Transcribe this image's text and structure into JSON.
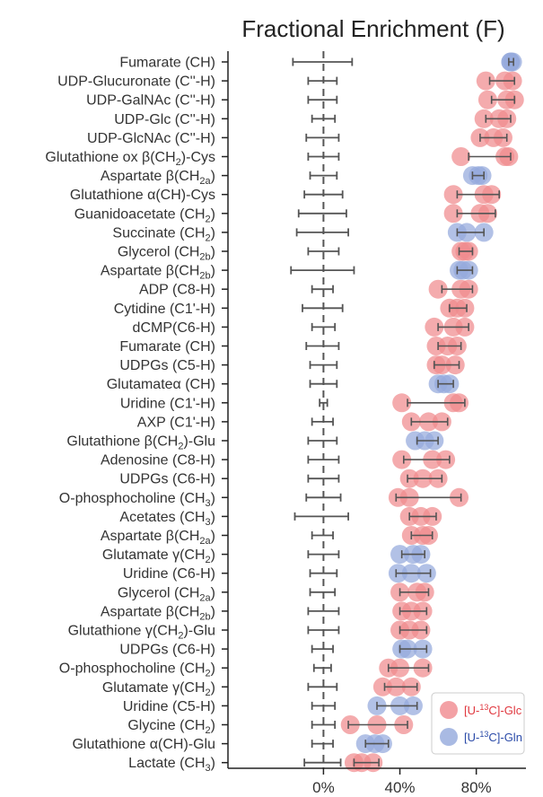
{
  "chart_data": {
    "type": "scatter",
    "title": "Fractional Enrichment (F)",
    "xlim": [
      -0.5,
      1.06
    ],
    "x_ticks": [
      {
        "value": 0.0,
        "label": "0%"
      },
      {
        "value": 0.4,
        "label": "40%"
      },
      {
        "value": 0.8,
        "label": "80%"
      }
    ],
    "zero_line": "dashed",
    "legend": {
      "placement": "bottom-right",
      "entries": [
        {
          "key": "glc",
          "label": "[U-13C]-Glc",
          "prefix": "[U-",
          "sup": "13",
          "suffix": "C]-Glc",
          "color": "#e0373e"
        },
        {
          "key": "gln",
          "label": "[U-13C]-Gln",
          "prefix": "[U-",
          "sup": "13",
          "suffix": "C]-Gln",
          "color": "#2a4aa8"
        }
      ]
    },
    "colors": {
      "glc": "#f08a8e",
      "gln": "#94a9dc",
      "error": "#555555",
      "axis": "#222222"
    },
    "rows": [
      {
        "label": "Fumarate (CH)",
        "null": [
          -0.16,
          0.15
        ],
        "gln": [
          0.98,
          0.98,
          0.99
        ],
        "gln_err": [
          0.97,
          0.995
        ]
      },
      {
        "label": "UDP-Glucuronate (C''-H)",
        "null": [
          -0.08,
          0.07
        ],
        "glc": [
          0.85,
          0.95,
          0.99
        ],
        "glc_err": [
          0.87,
          1.0
        ]
      },
      {
        "label": "UDP-GalNAc (C''-H)",
        "null": [
          -0.08,
          0.07
        ],
        "glc": [
          0.86,
          0.96,
          1.0
        ],
        "glc_err": [
          0.88,
          1.0
        ]
      },
      {
        "label": "UDP-Glc (C''-H)",
        "null": [
          -0.06,
          0.06
        ],
        "glc": [
          0.84,
          0.92,
          0.96
        ],
        "glc_err": [
          0.85,
          0.98
        ]
      },
      {
        "label": "UDP-GlcNAc (C''-H)",
        "null": [
          -0.09,
          0.08
        ],
        "glc": [
          0.82,
          0.89,
          0.94
        ],
        "glc_err": [
          0.82,
          0.96
        ]
      },
      {
        "label": "Glutathione ox β(CH2)-Cys",
        "null": [
          -0.08,
          0.08
        ],
        "glc": [
          0.72,
          0.95,
          0.97
        ],
        "glc_err": [
          0.76,
          0.98
        ]
      },
      {
        "label": "Aspartate β(CH2a)",
        "null": [
          -0.07,
          0.07
        ],
        "gln": [
          0.78,
          0.81,
          0.83
        ],
        "gln_err": [
          0.78,
          0.84
        ]
      },
      {
        "label": "Glutathione α(CH)-Cys",
        "null": [
          -0.1,
          0.1
        ],
        "glc": [
          0.68,
          0.84,
          0.88
        ],
        "glc_err": [
          0.7,
          0.92
        ]
      },
      {
        "label": "Guanidoacetate (CH2)",
        "null": [
          -0.13,
          0.12
        ],
        "glc": [
          0.68,
          0.82,
          0.86
        ],
        "glc_err": [
          0.7,
          0.9
        ]
      },
      {
        "label": "Succinate (CH2)",
        "null": [
          -0.14,
          0.13
        ],
        "gln": [
          0.7,
          0.75,
          0.84
        ],
        "gln_err": [
          0.7,
          0.84
        ]
      },
      {
        "label": "Glycerol (CH2b)",
        "null": [
          -0.08,
          0.08
        ],
        "glc": [
          0.72,
          0.74,
          0.76
        ],
        "glc_err": [
          0.71,
          0.78
        ]
      },
      {
        "label": "Aspartate β(CH2b)",
        "null": [
          -0.17,
          0.16
        ],
        "gln": [
          0.71,
          0.73,
          0.76
        ],
        "gln_err": [
          0.7,
          0.78
        ]
      },
      {
        "label": "ADP (C8-H)",
        "null": [
          -0.06,
          0.05
        ],
        "glc": [
          0.6,
          0.72,
          0.76
        ],
        "glc_err": [
          0.62,
          0.78
        ]
      },
      {
        "label": "Cytidine (C1'-H)",
        "null": [
          -0.11,
          0.1
        ],
        "glc": [
          0.66,
          0.7,
          0.74
        ],
        "glc_err": [
          0.66,
          0.75
        ]
      },
      {
        "label": "dCMP(C6-H)",
        "null": [
          -0.06,
          0.06
        ],
        "glc": [
          0.58,
          0.68,
          0.74
        ],
        "glc_err": [
          0.6,
          0.76
        ]
      },
      {
        "label": "Fumarate (CH)",
        "null": [
          -0.09,
          0.08
        ],
        "glc": [
          0.59,
          0.65,
          0.7
        ],
        "glc_err": [
          0.6,
          0.72
        ]
      },
      {
        "label": "UDPGs (C5-H)",
        "null": [
          -0.07,
          0.07
        ],
        "glc": [
          0.59,
          0.62,
          0.69
        ],
        "glc_err": [
          0.58,
          0.71
        ]
      },
      {
        "label": "Glutamateα (CH)",
        "null": [
          -0.07,
          0.07
        ],
        "gln": [
          0.6,
          0.63,
          0.66
        ],
        "gln_err": [
          0.6,
          0.68
        ]
      },
      {
        "label": "Uridine (C1'-H)",
        "null": [
          -0.02,
          0.02
        ],
        "glc": [
          0.41,
          0.68,
          0.71
        ],
        "glc_err": [
          0.44,
          0.74
        ]
      },
      {
        "label": "AXP (C1'-H)",
        "null": [
          -0.06,
          0.05
        ],
        "glc": [
          0.46,
          0.55,
          0.62
        ],
        "glc_err": [
          0.46,
          0.65
        ]
      },
      {
        "label": "Glutathione β(CH2)-Glu",
        "null": [
          -0.08,
          0.07
        ],
        "gln": [
          0.48,
          0.53,
          0.58
        ],
        "gln_err": [
          0.49,
          0.6
        ]
      },
      {
        "label": "Adenosine (C8-H)",
        "null": [
          -0.08,
          0.08
        ],
        "glc": [
          0.41,
          0.57,
          0.64
        ],
        "glc_err": [
          0.42,
          0.66
        ]
      },
      {
        "label": "UDPGs (C6-H)",
        "null": [
          -0.08,
          0.08
        ],
        "glc": [
          0.45,
          0.52,
          0.6
        ],
        "glc_err": [
          0.44,
          0.62
        ]
      },
      {
        "label": "O-phosphocholine (CH3)",
        "null": [
          -0.09,
          0.09
        ],
        "glc": [
          0.39,
          0.45,
          0.71
        ],
        "glc_err": [
          0.38,
          0.72
        ]
      },
      {
        "label": "Acetates (CH3)",
        "null": [
          -0.15,
          0.13
        ],
        "glc": [
          0.45,
          0.51,
          0.57
        ],
        "glc_err": [
          0.45,
          0.59
        ]
      },
      {
        "label": "Aspartate β(CH2a)",
        "null": [
          -0.06,
          0.05
        ],
        "glc": [
          0.46,
          0.52,
          0.55
        ],
        "glc_err": [
          0.46,
          0.57
        ]
      },
      {
        "label": "Glutamate γ(CH2)",
        "null": [
          -0.08,
          0.08
        ],
        "gln": [
          0.4,
          0.47,
          0.51
        ],
        "gln_err": [
          0.41,
          0.53
        ]
      },
      {
        "label": "Uridine (C6-H)",
        "null": [
          -0.07,
          0.07
        ],
        "gln": [
          0.39,
          0.46,
          0.54
        ],
        "gln_err": [
          0.38,
          0.56
        ]
      },
      {
        "label": "Glycerol (CH2a)",
        "null": [
          -0.07,
          0.06
        ],
        "glc": [
          0.4,
          0.49,
          0.53
        ],
        "glc_err": [
          0.4,
          0.55
        ]
      },
      {
        "label": "Aspartate β(CH2b)",
        "null": [
          -0.08,
          0.08
        ],
        "glc": [
          0.41,
          0.46,
          0.52
        ],
        "glc_err": [
          0.4,
          0.54
        ]
      },
      {
        "label": "Glutathione γ(CH2)-Glu",
        "null": [
          -0.08,
          0.08
        ],
        "glc": [
          0.4,
          0.45,
          0.51
        ],
        "glc_err": [
          0.4,
          0.54
        ]
      },
      {
        "label": "UDPGs (C6-H)",
        "null": [
          -0.06,
          0.05
        ],
        "gln": [
          0.41,
          0.44,
          0.52
        ],
        "gln_err": [
          0.4,
          0.54
        ]
      },
      {
        "label": "O-phosphocholine (CH2)",
        "null": [
          -0.05,
          0.04
        ],
        "glc": [
          0.34,
          0.4,
          0.52
        ],
        "glc_err": [
          0.34,
          0.55
        ]
      },
      {
        "label": "Glutamate γ(CH2)",
        "null": [
          -0.08,
          0.07
        ],
        "glc": [
          0.31,
          0.38,
          0.46
        ],
        "glc_err": [
          0.32,
          0.49
        ]
      },
      {
        "label": "Uridine (C5-H)",
        "null": [
          -0.06,
          0.06
        ],
        "gln": [
          0.28,
          0.4,
          0.47
        ],
        "gln_err": [
          0.28,
          0.49
        ]
      },
      {
        "label": "Glycine (CH2)",
        "null": [
          -0.06,
          0.06
        ],
        "glc": [
          0.14,
          0.28,
          0.42
        ],
        "glc_err": [
          0.13,
          0.44
        ]
      },
      {
        "label": "Glutathione α(CH)-Glu",
        "null": [
          -0.06,
          0.05
        ],
        "gln": [
          0.22,
          0.27,
          0.31
        ],
        "gln_err": [
          0.22,
          0.34
        ]
      },
      {
        "label": "Lactate (CH3)",
        "null": [
          -0.1,
          0.09
        ],
        "glc": [
          0.16,
          0.2,
          0.26
        ],
        "glc_err": [
          0.16,
          0.29
        ]
      }
    ]
  }
}
